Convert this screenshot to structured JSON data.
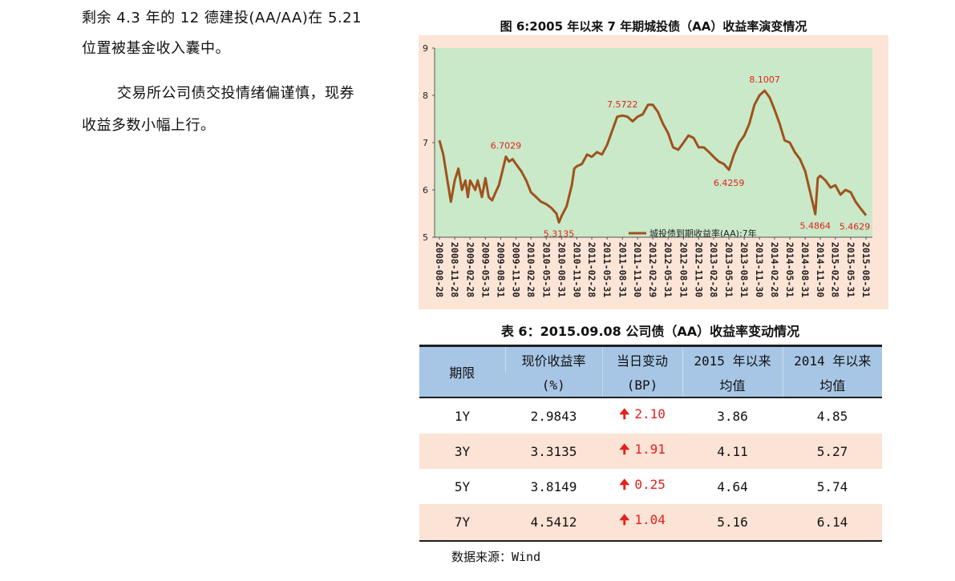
{
  "left_text": {
    "lines": [
      "剩余 4.3 年的 12 德建投(AA/AA)在 5.21",
      "位置被基金收入囊中。",
      "交易所公司债交投情绪偏谨慎，现券",
      "收益多数小幅上行。"
    ]
  },
  "figure": {
    "title": "图 6:2005 年以来 7 年期城投债（AA）收益率演变情况"
  },
  "chart_data": {
    "type": "line",
    "title": "",
    "ylim": [
      5,
      9
    ],
    "yticks": [
      "5",
      "6",
      "7",
      "8",
      "9"
    ],
    "x_ticks": [
      "2008-08-28",
      "2008-11-28",
      "2009-02-28",
      "2009-05-31",
      "2009-08-31",
      "2009-11-30",
      "2010-02-28",
      "2010-05-31",
      "2010-08-31",
      "2010-11-30",
      "2011-02-28",
      "2011-05-31",
      "2011-08-31",
      "2011-11-30",
      "2012-02-29",
      "2012-05-31",
      "2012-08-31",
      "2012-11-30",
      "2013-02-28",
      "2013-05-31",
      "2013-08-31",
      "2013-11-30",
      "2014-02-28",
      "2014-05-31",
      "2014-08-31",
      "2014-11-30",
      "2015-02-28",
      "2015-05-31",
      "2015-08-31"
    ],
    "series": [
      {
        "name": "城投债到期收益率(AA):7年",
        "color": "#a0521d",
        "points": [
          [
            "2008-08-28",
            7.05
          ],
          [
            "2008-09-20",
            6.75
          ],
          [
            "2008-10-15",
            6.2
          ],
          [
            "2008-11-05",
            5.75
          ],
          [
            "2008-11-28",
            6.2
          ],
          [
            "2008-12-20",
            6.45
          ],
          [
            "2009-01-10",
            6.0
          ],
          [
            "2009-01-31",
            6.2
          ],
          [
            "2009-02-15",
            5.85
          ],
          [
            "2009-02-28",
            6.2
          ],
          [
            "2009-03-31",
            6.0
          ],
          [
            "2009-04-15",
            6.2
          ],
          [
            "2009-05-10",
            5.85
          ],
          [
            "2009-05-31",
            6.25
          ],
          [
            "2009-06-20",
            5.85
          ],
          [
            "2009-07-10",
            5.78
          ],
          [
            "2009-07-31",
            5.95
          ],
          [
            "2009-08-20",
            6.1
          ],
          [
            "2009-09-10",
            6.4
          ],
          [
            "2009-10-01",
            6.7029
          ],
          [
            "2009-10-20",
            6.6
          ],
          [
            "2009-11-10",
            6.65
          ],
          [
            "2009-11-30",
            6.55
          ],
          [
            "2009-12-31",
            6.4
          ],
          [
            "2010-01-31",
            6.2
          ],
          [
            "2010-02-28",
            5.95
          ],
          [
            "2010-03-31",
            5.85
          ],
          [
            "2010-04-30",
            5.75
          ],
          [
            "2010-05-31",
            5.7
          ],
          [
            "2010-06-30",
            5.62
          ],
          [
            "2010-07-31",
            5.5
          ],
          [
            "2010-08-15",
            5.3135
          ],
          [
            "2010-08-31",
            5.45
          ],
          [
            "2010-09-30",
            5.65
          ],
          [
            "2010-10-31",
            6.1
          ],
          [
            "2010-11-15",
            6.45
          ],
          [
            "2010-11-30",
            6.5
          ],
          [
            "2010-12-31",
            6.55
          ],
          [
            "2011-01-31",
            6.75
          ],
          [
            "2011-02-28",
            6.7
          ],
          [
            "2011-03-31",
            6.8
          ],
          [
            "2011-04-30",
            6.75
          ],
          [
            "2011-05-31",
            6.95
          ],
          [
            "2011-06-30",
            7.25
          ],
          [
            "2011-07-31",
            7.55
          ],
          [
            "2011-08-31",
            7.5722
          ],
          [
            "2011-09-30",
            7.55
          ],
          [
            "2011-10-31",
            7.45
          ],
          [
            "2011-11-30",
            7.55
          ],
          [
            "2011-12-31",
            7.6
          ],
          [
            "2012-01-31",
            7.8
          ],
          [
            "2012-02-29",
            7.8
          ],
          [
            "2012-03-31",
            7.65
          ],
          [
            "2012-04-30",
            7.4
          ],
          [
            "2012-05-31",
            7.2
          ],
          [
            "2012-06-30",
            6.9
          ],
          [
            "2012-07-31",
            6.85
          ],
          [
            "2012-08-31",
            7.0
          ],
          [
            "2012-09-30",
            7.15
          ],
          [
            "2012-10-31",
            7.1
          ],
          [
            "2012-11-30",
            6.9
          ],
          [
            "2012-12-31",
            6.9
          ],
          [
            "2013-01-31",
            6.8
          ],
          [
            "2013-02-28",
            6.7
          ],
          [
            "2013-03-31",
            6.6
          ],
          [
            "2013-04-30",
            6.55
          ],
          [
            "2013-05-31",
            6.4259
          ],
          [
            "2013-06-30",
            6.75
          ],
          [
            "2013-07-31",
            7.0
          ],
          [
            "2013-08-31",
            7.15
          ],
          [
            "2013-09-30",
            7.4
          ],
          [
            "2013-10-31",
            7.8
          ],
          [
            "2013-11-30",
            8.0
          ],
          [
            "2013-12-31",
            8.1007
          ],
          [
            "2014-01-31",
            7.95
          ],
          [
            "2014-02-28",
            7.7
          ],
          [
            "2014-03-31",
            7.4
          ],
          [
            "2014-04-30",
            7.05
          ],
          [
            "2014-05-31",
            7.0
          ],
          [
            "2014-06-30",
            6.8
          ],
          [
            "2014-07-31",
            6.65
          ],
          [
            "2014-08-31",
            6.4
          ],
          [
            "2014-09-30",
            5.95
          ],
          [
            "2014-10-31",
            5.4864
          ],
          [
            "2014-11-15",
            6.25
          ],
          [
            "2014-11-30",
            6.3
          ],
          [
            "2014-12-31",
            6.2
          ],
          [
            "2015-01-31",
            6.05
          ],
          [
            "2015-02-28",
            6.1
          ],
          [
            "2015-03-31",
            5.9
          ],
          [
            "2015-04-30",
            6.0
          ],
          [
            "2015-05-31",
            5.95
          ],
          [
            "2015-06-30",
            5.75
          ],
          [
            "2015-07-31",
            5.6
          ],
          [
            "2015-08-31",
            5.4629
          ]
        ]
      }
    ],
    "annotations": [
      {
        "x": "2009-10-01",
        "y": 6.7029,
        "text": "6.7029"
      },
      {
        "x": "2010-08-15",
        "y": 5.3135,
        "text": "5.3135"
      },
      {
        "x": "2011-08-31",
        "y": 7.5722,
        "text": "7.5722"
      },
      {
        "x": "2013-05-31",
        "y": 6.4259,
        "text": "6.4259"
      },
      {
        "x": "2013-12-31",
        "y": 8.1007,
        "text": "8.1007"
      },
      {
        "x": "2014-10-31",
        "y": 5.4864,
        "text": "5.4864"
      },
      {
        "x": "2015-08-31",
        "y": 5.4629,
        "text": "5.4629"
      }
    ],
    "legend": {
      "label": "城投债到期收益率(AA):7年",
      "placement": "bottom-center"
    },
    "colors": {
      "plot_bg": "#c9e9c9",
      "outer_bg": "#fce4d6",
      "line": "#a0521d",
      "annotation": "#e3201b"
    },
    "grid": false
  },
  "table": {
    "title": "表 6：2015.09.08 公司债（AA）收益率变动情况",
    "headers": {
      "period": "期限",
      "yield_l1": "现价收益率",
      "yield_l2": "(%)",
      "change_l1": "当日变动",
      "change_l2": "(BP)",
      "avg2015_l1": "2015 年以来",
      "avg2015_l2": "均值",
      "avg2014_l1": "2014 年以来",
      "avg2014_l2": "均值"
    },
    "arrow_icon": "up-arrow-icon",
    "rows": [
      {
        "period": "1Y",
        "yield": "2.9843",
        "change": "2.10",
        "avg2015": "3.86",
        "avg2014": "4.85"
      },
      {
        "period": "3Y",
        "yield": "3.3135",
        "change": "1.91",
        "avg2015": "4.11",
        "avg2014": "5.27"
      },
      {
        "period": "5Y",
        "yield": "3.8149",
        "change": "0.25",
        "avg2015": "4.64",
        "avg2014": "5.74"
      },
      {
        "period": "7Y",
        "yield": "4.5412",
        "change": "1.04",
        "avg2015": "5.16",
        "avg2014": "6.14"
      }
    ],
    "colors": {
      "header_bg": "#a7c6e5",
      "row_shade": "#fbe3d5",
      "up": "#e3201b"
    }
  },
  "source": "数据来源：Wind"
}
